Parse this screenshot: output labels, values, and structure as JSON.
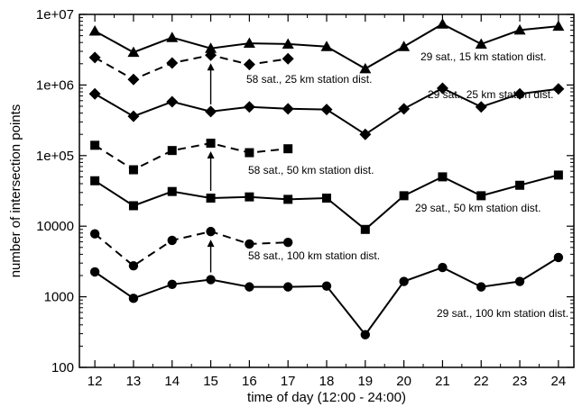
{
  "chart_data": {
    "type": "line",
    "title": "",
    "xlabel": "time of day (12:00 - 24:00)",
    "ylabel": "number of intersection points",
    "x": [
      12,
      13,
      14,
      15,
      16,
      17,
      18,
      19,
      20,
      21,
      22,
      23,
      24
    ],
    "xlim": [
      11.6,
      24.4
    ],
    "ylim": [
      100,
      10000000
    ],
    "yscale": "log",
    "x_tick_labels": [
      "12",
      "13",
      "14",
      "15",
      "16",
      "17",
      "18",
      "19",
      "20",
      "21",
      "22",
      "23",
      "24"
    ],
    "y_ticks": [
      100,
      1000,
      10000,
      100000,
      1000000,
      10000000
    ],
    "y_tick_labels": [
      "100",
      "1000",
      "10000",
      "1e+05",
      "1e+06",
      "1e+07"
    ],
    "grid": false,
    "legend": "none",
    "series": [
      {
        "name": "29 sat., 15 km station dist.",
        "marker": "triangle",
        "line_style": "solid",
        "x": [
          12,
          13,
          14,
          15,
          16,
          17,
          18,
          19,
          20,
          21,
          22,
          23,
          24
        ],
        "values": [
          5800000,
          2900000,
          4700000,
          3300000,
          3900000,
          3800000,
          3500000,
          1700000,
          3500000,
          7300000,
          3800000,
          6000000,
          6800000
        ]
      },
      {
        "name": "58 sat., 25 km station dist.",
        "marker": "diamond",
        "line_style": "dashed",
        "x": [
          12,
          13,
          14,
          15,
          16,
          17
        ],
        "values": [
          2450000,
          1200000,
          2050000,
          2650000,
          1950000,
          2350000
        ]
      },
      {
        "name": "29 sat., 25 km station dist.",
        "marker": "diamond",
        "line_style": "solid",
        "x": [
          12,
          13,
          14,
          15,
          16,
          17,
          18,
          19,
          20,
          21,
          22,
          23,
          24
        ],
        "values": [
          750000,
          360000,
          580000,
          420000,
          490000,
          460000,
          450000,
          200000,
          460000,
          900000,
          490000,
          750000,
          880000
        ]
      },
      {
        "name": "58 sat., 50 km station dist.",
        "marker": "square",
        "line_style": "dashed",
        "x": [
          12,
          13,
          14,
          15,
          16,
          17
        ],
        "values": [
          140000,
          63000,
          118000,
          150000,
          110000,
          125000
        ]
      },
      {
        "name": "29 sat., 50 km station dist.",
        "marker": "square",
        "line_style": "solid",
        "x": [
          12,
          13,
          14,
          15,
          16,
          17,
          18,
          19,
          20,
          21,
          22,
          23,
          24
        ],
        "values": [
          44000,
          19500,
          31000,
          25000,
          26000,
          24000,
          25000,
          9000,
          27000,
          50000,
          27000,
          38000,
          53000
        ]
      },
      {
        "name": "58 sat., 100 km station dist.",
        "marker": "circle",
        "line_style": "dashed",
        "x": [
          12,
          13,
          14,
          15,
          16,
          17
        ],
        "values": [
          7800,
          2750,
          6300,
          8400,
          5600,
          5900
        ]
      },
      {
        "name": "29 sat., 100 km station dist.",
        "marker": "circle",
        "line_style": "solid",
        "x": [
          12,
          13,
          14,
          15,
          16,
          17,
          18,
          19,
          20,
          21,
          22,
          23,
          24
        ],
        "values": [
          2250,
          950,
          1500,
          1750,
          1380,
          1380,
          1420,
          290,
          1650,
          2600,
          1380,
          1650,
          3600
        ]
      }
    ],
    "annotations": [
      {
        "text": "29 sat., 15 km station dist.",
        "series": 0
      },
      {
        "text": "58 sat., 25 km station dist.",
        "series": 1
      },
      {
        "text": "29 sat., 25 km station dist.",
        "series": 2
      },
      {
        "text": "58 sat., 50 km station dist.",
        "series": 3
      },
      {
        "text": "29 sat., 50 km station dist.",
        "series": 4
      },
      {
        "text": "58 sat., 100 km station dist.",
        "series": 5
      },
      {
        "text": "29 sat., 100 km station dist.",
        "series": 6
      }
    ],
    "arrows": [
      {
        "x": 15,
        "from": 420000,
        "to": 2650000
      },
      {
        "x": 15,
        "from": 25000,
        "to": 150000
      },
      {
        "x": 15,
        "from": 1750,
        "to": 8400
      }
    ]
  }
}
